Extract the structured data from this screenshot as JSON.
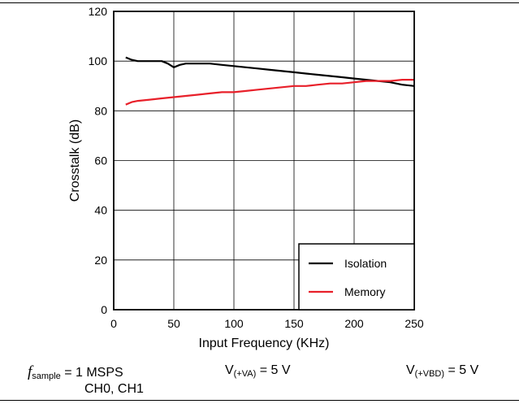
{
  "chart_data": {
    "type": "line",
    "xlabel": "Input Frequency (KHz)",
    "ylabel": "Crosstalk (dB)",
    "xlim": [
      0,
      250
    ],
    "ylim": [
      0,
      120
    ],
    "xticks": [
      0,
      50,
      100,
      150,
      200,
      250
    ],
    "yticks": [
      0,
      20,
      40,
      60,
      80,
      100,
      120
    ],
    "grid": true,
    "legend_position": "bottom-right",
    "series": [
      {
        "name": "Isolation",
        "color": "#000000",
        "x": [
          10,
          15,
          20,
          30,
          40,
          45,
          50,
          55,
          60,
          70,
          80,
          90,
          100,
          110,
          120,
          130,
          140,
          150,
          160,
          170,
          180,
          190,
          200,
          210,
          220,
          230,
          240,
          250
        ],
        "y": [
          101.5,
          100.5,
          100,
          100,
          100,
          99,
          97.5,
          98.5,
          99,
          99,
          99,
          98.5,
          98,
          97.5,
          97,
          96.5,
          96,
          95.5,
          95,
          94.5,
          94,
          93.5,
          93,
          92.5,
          92,
          91.5,
          90.5,
          90
        ]
      },
      {
        "name": "Memory",
        "color": "#e8202a",
        "x": [
          10,
          15,
          20,
          30,
          40,
          50,
          60,
          70,
          80,
          90,
          100,
          110,
          120,
          130,
          140,
          150,
          160,
          170,
          180,
          190,
          200,
          210,
          220,
          230,
          240,
          250
        ],
        "y": [
          82.5,
          83.5,
          84,
          84.5,
          85,
          85.5,
          86,
          86.5,
          87,
          87.5,
          87.5,
          88,
          88.5,
          89,
          89.5,
          90,
          90,
          90.5,
          91,
          91,
          91.5,
          92,
          92,
          92,
          92.5,
          92.5
        ]
      }
    ]
  },
  "conditions": {
    "f_symbol": "f",
    "f_sub": "sample",
    "f_value": " = 1 MSPS",
    "channels": "CH0, CH1",
    "va_main": "V",
    "va_sub": "(+VA)",
    "va_value": " = 5 V",
    "vbd_main": "V",
    "vbd_sub": "(+VBD)",
    "vbd_value": " = 5 V"
  }
}
